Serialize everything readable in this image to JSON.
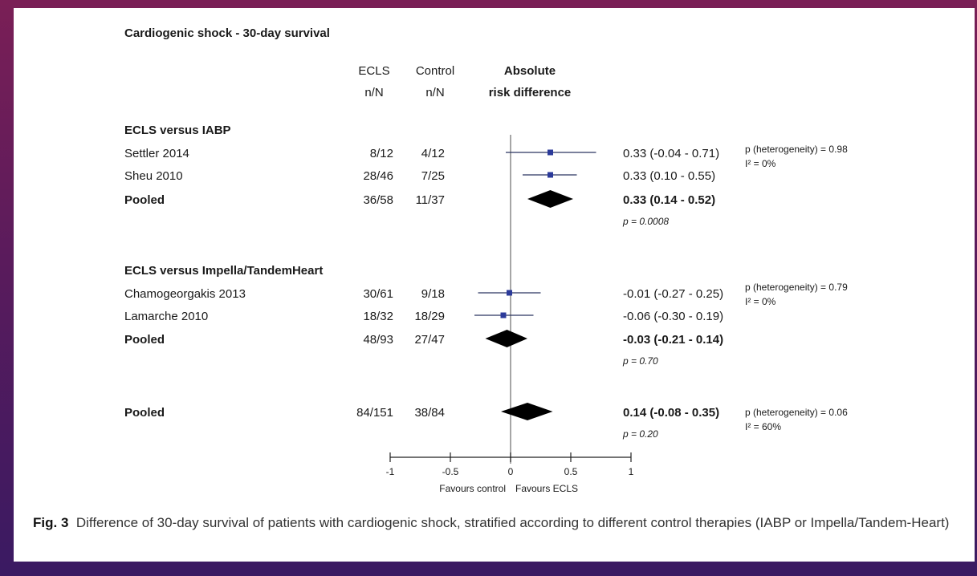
{
  "title": "Cardiogenic shock - 30-day survival",
  "headers": {
    "ecls": [
      "ECLS",
      "n/N"
    ],
    "control": [
      "Control",
      "n/N"
    ],
    "ard": [
      "Absolute",
      "risk difference"
    ]
  },
  "caption": {
    "label": "Fig. 3",
    "text": "Difference of 30-day survival of patients with cardiogenic shock, stratified according to different control therapies (IABP or Impella/Tandem-Heart)"
  },
  "chart_data": {
    "type": "forest",
    "xlim": [
      -1,
      1
    ],
    "ticks": [
      -1,
      -0.5,
      0,
      0.5,
      1
    ],
    "tick_labels": [
      "-1",
      "-0.5",
      "0",
      "0.5",
      "1"
    ],
    "favours_left": "Favours control",
    "favours_right": "Favours ECLS",
    "marker_color": "#2b3a9a",
    "groups": [
      {
        "title": "ECLS versus IABP",
        "studies": [
          {
            "name": "Settler 2014",
            "ecls": "8/12",
            "control": "4/12",
            "est": 0.33,
            "lo": -0.04,
            "hi": 0.71,
            "ci_text": "0.33 (-0.04 - 0.71)"
          },
          {
            "name": "Sheu 2010",
            "ecls": "28/46",
            "control": "7/25",
            "est": 0.33,
            "lo": 0.1,
            "hi": 0.55,
            "ci_text": "0.33 (0.10 - 0.55)"
          }
        ],
        "pooled": {
          "name": "Pooled",
          "ecls": "36/58",
          "control": "11/37",
          "est": 0.33,
          "lo": 0.14,
          "hi": 0.52,
          "ci_text": "0.33 (0.14 - 0.52)",
          "p": "p = 0.0008"
        },
        "heterogeneity": [
          "p (heterogeneity) = 0.98",
          "I² = 0%"
        ]
      },
      {
        "title": "ECLS versus Impella/TandemHeart",
        "studies": [
          {
            "name": "Chamogeorgakis 2013",
            "ecls": "30/61",
            "control": "9/18",
            "est": -0.01,
            "lo": -0.27,
            "hi": 0.25,
            "ci_text": "-0.01 (-0.27 - 0.25)"
          },
          {
            "name": "Lamarche 2010",
            "ecls": "18/32",
            "control": "18/29",
            "est": -0.06,
            "lo": -0.3,
            "hi": 0.19,
            "ci_text": "-0.06 (-0.30 - 0.19)"
          }
        ],
        "pooled": {
          "name": "Pooled",
          "ecls": "48/93",
          "control": "27/47",
          "est": -0.03,
          "lo": -0.21,
          "hi": 0.14,
          "ci_text": "-0.03 (-0.21 - 0.14)",
          "p": "p = 0.70"
        },
        "heterogeneity": [
          "p (heterogeneity) = 0.79",
          "I² = 0%"
        ]
      }
    ],
    "overall": {
      "name": "Pooled",
      "ecls": "84/151",
      "control": "38/84",
      "est": 0.14,
      "lo": -0.08,
      "hi": 0.35,
      "ci_text": "0.14 (-0.08 - 0.35)",
      "p": "p = 0.20",
      "heterogeneity": [
        "p (heterogeneity) = 0.06",
        "I² = 60%"
      ]
    }
  }
}
